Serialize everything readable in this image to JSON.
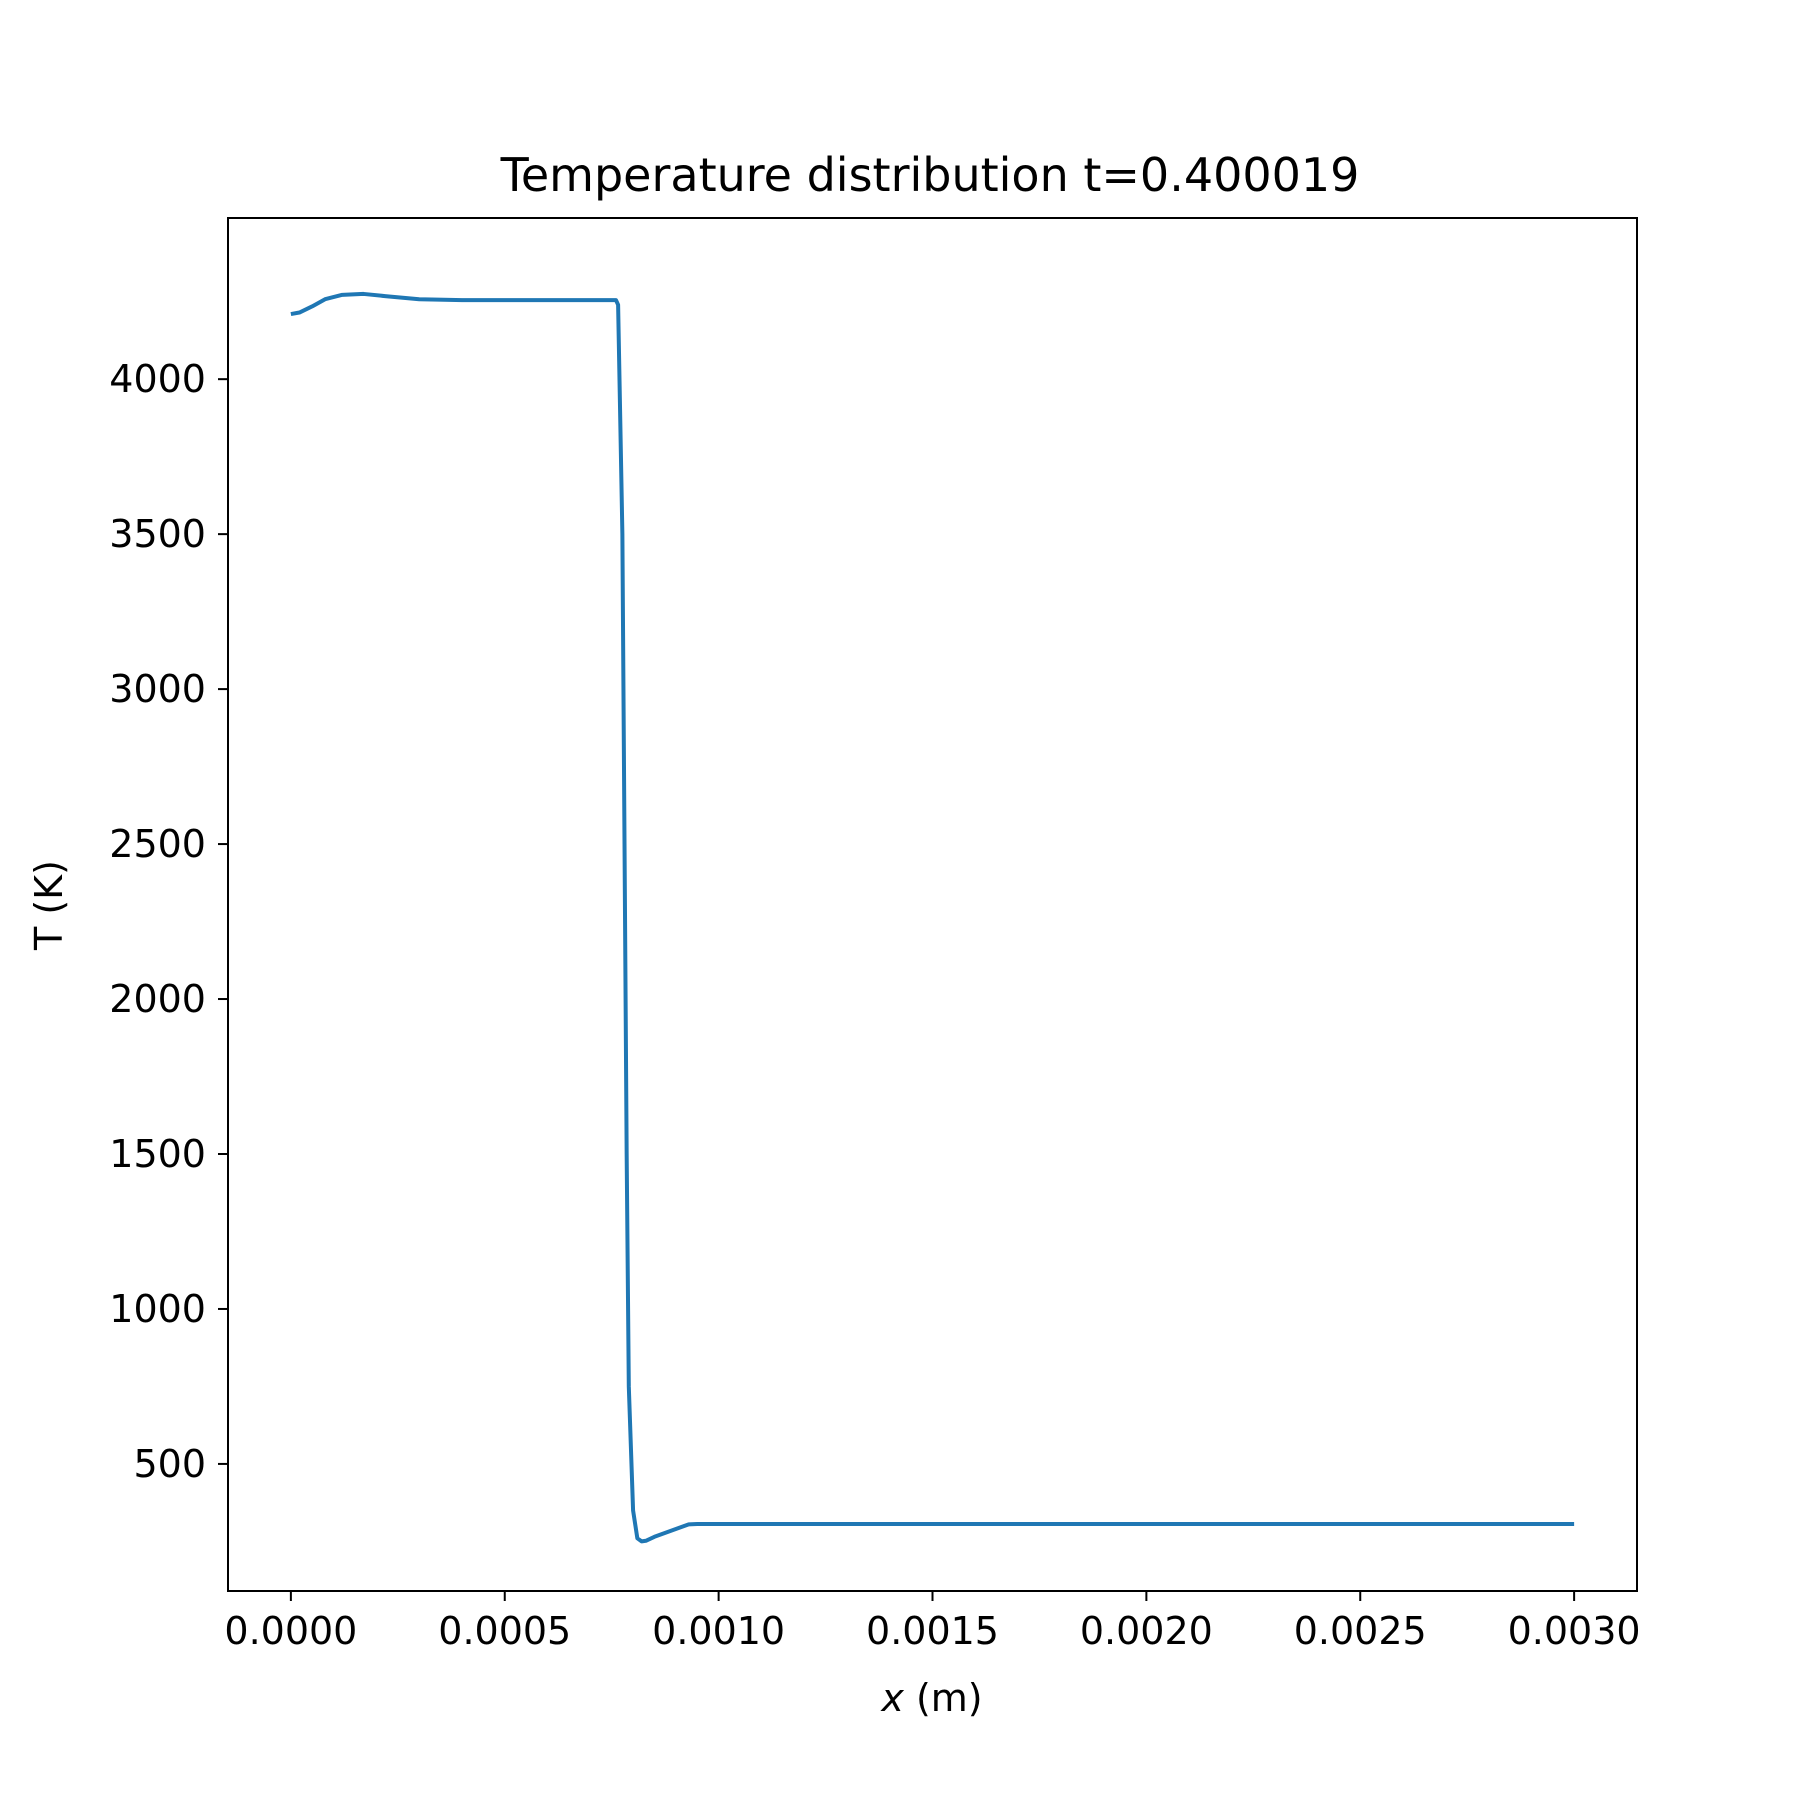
{
  "chart_data": {
    "type": "line",
    "title": "Temperature distribution t=0.400019",
    "xlabel_var": "x",
    "xlabel_unit": " (m)",
    "ylabel": "T (K)",
    "xlim": [
      -0.000147,
      0.003147
    ],
    "ylim": [
      90,
      4520
    ],
    "x_ticks": [
      0.0,
      0.0005,
      0.001,
      0.0015,
      0.002,
      0.0025,
      0.003
    ],
    "x_tick_labels": [
      "0.0000",
      "0.0005",
      "0.0010",
      "0.0015",
      "0.0020",
      "0.0025",
      "0.0030"
    ],
    "y_ticks": [
      500,
      1000,
      1500,
      2000,
      2500,
      3000,
      3500,
      4000
    ],
    "y_tick_labels": [
      "500",
      "1000",
      "1500",
      "2000",
      "2500",
      "3000",
      "3500",
      "4000"
    ],
    "grid": false,
    "series": [
      {
        "color": "#1f77b4",
        "x": [
          0.0,
          2e-05,
          5e-05,
          8e-05,
          0.00012,
          0.00017,
          0.00022,
          0.0003,
          0.0004,
          0.0005,
          0.0006,
          0.0007,
          0.00076,
          0.000765,
          0.000775,
          0.00078,
          0.000785,
          0.00079,
          0.0008,
          0.00081,
          0.00082,
          0.00083,
          0.00085,
          0.0009,
          0.00093,
          0.00095,
          0.001,
          0.0015,
          0.002,
          0.0025,
          0.003
        ],
        "y": [
          4210,
          4215,
          4235,
          4258,
          4272,
          4275,
          4268,
          4258,
          4255,
          4255,
          4255,
          4255,
          4255,
          4240,
          3500,
          2500,
          1500,
          750,
          350,
          260,
          250,
          252,
          265,
          290,
          305,
          306,
          306,
          306,
          306,
          306,
          306
        ]
      }
    ]
  }
}
